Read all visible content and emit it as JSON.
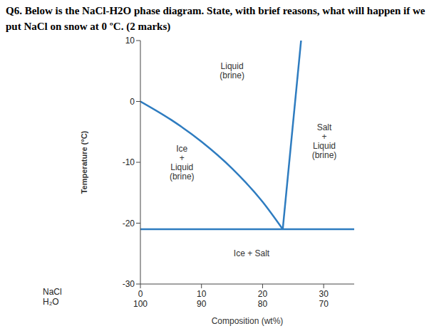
{
  "chart_data": {
    "type": "line",
    "title": "Q6. Below is the NaCl-H2O phase diagram. State, with brief reasons, what will happen if we put NaCl on snow at 0 ºC. (2 marks)",
    "x_label": "Composition (wt%)",
    "y_label": "Temperature (°C)",
    "x_row_labels": [
      "NaCl",
      "H₂O"
    ],
    "xlim": [
      0,
      35
    ],
    "xticks": [
      0,
      10,
      20,
      30
    ],
    "h2o_ticks": [
      100,
      90,
      80,
      70
    ],
    "ylim": [
      -30,
      10
    ],
    "yticks": [
      -30,
      -20,
      -10,
      0,
      10
    ],
    "grid": false,
    "series": [
      {
        "color": "#2e7cc0",
        "line_style": "solid",
        "x": [
          0,
          5,
          10,
          15,
          20,
          23.3
        ],
        "values": [
          0,
          -3,
          -6.6,
          -11,
          -16.5,
          -21
        ]
      },
      {
        "color": "#2e7cc0",
        "line_style": "solid",
        "x": [
          23.3,
          26.3
        ],
        "values": [
          -21,
          10
        ]
      },
      {
        "color": "#2e7cc0",
        "line_style": "solid",
        "x": [
          0,
          35
        ],
        "values": [
          -21,
          -21
        ]
      }
    ],
    "annotations": [
      {
        "text": "Liquid\n(brine)",
        "x": 15,
        "y": 5
      },
      {
        "text": "Ice\n+\nLiquid\n(brine)",
        "x": 6.8,
        "y": -10
      },
      {
        "text": "Salt\n+\nLiquid\n(brine)",
        "x": 30.1,
        "y": -6.5
      },
      {
        "text": "Ice + Salt",
        "x": 18.2,
        "y": -25
      }
    ]
  }
}
